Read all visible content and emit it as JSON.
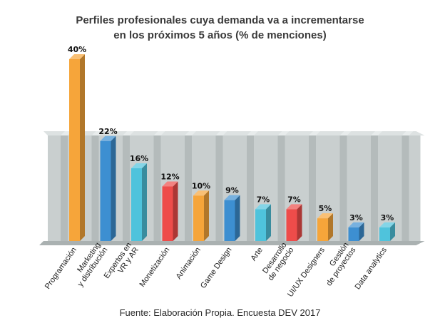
{
  "chart_data": {
    "type": "bar",
    "title_lines": [
      "Perfiles profesionales cuya demanda va a incrementarse",
      "en los próximos 5 años (% de menciones)"
    ],
    "categories": [
      [
        "Programación"
      ],
      [
        "Marketing",
        "y distribución"
      ],
      [
        "Expertos en",
        "VR y AR"
      ],
      [
        "Monetización"
      ],
      [
        "Animación"
      ],
      [
        "Game Design"
      ],
      [
        "Arte"
      ],
      [
        "Desarrollo",
        "de negocio"
      ],
      [
        "UI/UX Designers"
      ],
      [
        "Gestión",
        "de proyectos"
      ],
      [
        "Data analytics"
      ]
    ],
    "values": [
      40,
      22,
      16,
      12,
      10,
      9,
      7,
      7,
      5,
      3,
      3
    ],
    "value_labels": [
      "40%",
      "22%",
      "16%",
      "12%",
      "10%",
      "9%",
      "7%",
      "7%",
      "5%",
      "3%",
      "3%"
    ],
    "colors": [
      "#f6a53a",
      "#3d8fd1",
      "#4fc3dc",
      "#ee4c4a",
      "#f6a53a",
      "#3d8fd1",
      "#4fc3dc",
      "#ee4c4a",
      "#f6a53a",
      "#3d8fd1",
      "#4fc3dc"
    ],
    "ylim": [
      0,
      40
    ],
    "source": "Fuente: Elaboración Propia. Encuesta DEV 2017"
  }
}
